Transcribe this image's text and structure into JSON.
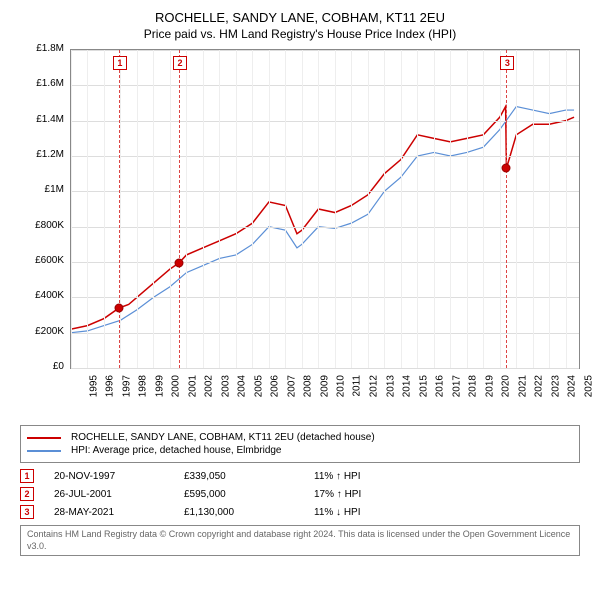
{
  "title": "ROCHELLE, SANDY LANE, COBHAM, KT11 2EU",
  "subtitle": "Price paid vs. HM Land Registry's House Price Index (HPI)",
  "chart": {
    "type": "line",
    "background_color": "#ffffff",
    "grid_color": "#dddddd",
    "grid_color_minor": "#eeeeee",
    "border_color": "#888888",
    "x_min": 1995,
    "x_max": 2025.8,
    "y_min": 0,
    "y_max": 1800000,
    "y_ticks": [
      {
        "v": 0,
        "label": "£0"
      },
      {
        "v": 200000,
        "label": "£200K"
      },
      {
        "v": 400000,
        "label": "£400K"
      },
      {
        "v": 600000,
        "label": "£600K"
      },
      {
        "v": 800000,
        "label": "£800K"
      },
      {
        "v": 1000000,
        "label": "£1M"
      },
      {
        "v": 1200000,
        "label": "£1.2M"
      },
      {
        "v": 1400000,
        "label": "£1.4M"
      },
      {
        "v": 1600000,
        "label": "£1.6M"
      },
      {
        "v": 1800000,
        "label": "£1.8M"
      }
    ],
    "x_ticks": [
      1995,
      1996,
      1997,
      1998,
      1999,
      2000,
      2001,
      2002,
      2003,
      2004,
      2005,
      2006,
      2007,
      2008,
      2009,
      2010,
      2011,
      2012,
      2013,
      2014,
      2015,
      2016,
      2017,
      2018,
      2019,
      2020,
      2021,
      2022,
      2023,
      2024,
      2025
    ],
    "series": [
      {
        "name": "rochelle",
        "label": "ROCHELLE, SANDY LANE, COBHAM, KT11 2EU (detached house)",
        "color": "#cc0000",
        "line_width": 1.5,
        "data": [
          [
            1995,
            220000
          ],
          [
            1996,
            240000
          ],
          [
            1997,
            280000
          ],
          [
            1997.9,
            339050
          ],
          [
            1998.5,
            360000
          ],
          [
            1999,
            400000
          ],
          [
            2000,
            480000
          ],
          [
            2001,
            560000
          ],
          [
            2001.55,
            595000
          ],
          [
            2002,
            640000
          ],
          [
            2003,
            680000
          ],
          [
            2004,
            720000
          ],
          [
            2005,
            760000
          ],
          [
            2006,
            820000
          ],
          [
            2007,
            940000
          ],
          [
            2008,
            920000
          ],
          [
            2008.7,
            760000
          ],
          [
            2009,
            780000
          ],
          [
            2010,
            900000
          ],
          [
            2011,
            880000
          ],
          [
            2012,
            920000
          ],
          [
            2013,
            980000
          ],
          [
            2014,
            1100000
          ],
          [
            2015,
            1180000
          ],
          [
            2016,
            1320000
          ],
          [
            2017,
            1300000
          ],
          [
            2018,
            1280000
          ],
          [
            2019,
            1300000
          ],
          [
            2020,
            1320000
          ],
          [
            2021,
            1420000
          ],
          [
            2021.35,
            1480000
          ],
          [
            2021.4,
            1130000
          ],
          [
            2022,
            1320000
          ],
          [
            2023,
            1380000
          ],
          [
            2024,
            1380000
          ],
          [
            2025,
            1400000
          ],
          [
            2025.5,
            1420000
          ]
        ]
      },
      {
        "name": "hpi",
        "label": "HPI: Average price, detached house, Elmbridge",
        "color": "#5b8fd6",
        "line_width": 1.2,
        "data": [
          [
            1995,
            200000
          ],
          [
            1996,
            210000
          ],
          [
            1997,
            240000
          ],
          [
            1998,
            270000
          ],
          [
            1999,
            330000
          ],
          [
            2000,
            400000
          ],
          [
            2001,
            460000
          ],
          [
            2002,
            540000
          ],
          [
            2003,
            580000
          ],
          [
            2004,
            620000
          ],
          [
            2005,
            640000
          ],
          [
            2006,
            700000
          ],
          [
            2007,
            800000
          ],
          [
            2008,
            780000
          ],
          [
            2008.7,
            680000
          ],
          [
            2009,
            700000
          ],
          [
            2010,
            800000
          ],
          [
            2011,
            790000
          ],
          [
            2012,
            820000
          ],
          [
            2013,
            870000
          ],
          [
            2014,
            1000000
          ],
          [
            2015,
            1080000
          ],
          [
            2016,
            1200000
          ],
          [
            2017,
            1220000
          ],
          [
            2018,
            1200000
          ],
          [
            2019,
            1220000
          ],
          [
            2020,
            1250000
          ],
          [
            2021,
            1350000
          ],
          [
            2022,
            1480000
          ],
          [
            2023,
            1460000
          ],
          [
            2024,
            1440000
          ],
          [
            2025,
            1460000
          ],
          [
            2025.5,
            1460000
          ]
        ]
      }
    ],
    "markers": [
      {
        "n": "1",
        "x": 1997.9,
        "y": 339050
      },
      {
        "n": "2",
        "x": 2001.55,
        "y": 595000
      },
      {
        "n": "3",
        "x": 2021.4,
        "y": 1130000
      }
    ],
    "marker_line_color": "#d44",
    "marker_box_border": "#cc0000",
    "marker_box_text": "#cc0000",
    "point_dot_fill": "#cc0000",
    "point_dot_border": "#990000"
  },
  "legend": {
    "items": [
      {
        "color": "#cc0000",
        "label": "ROCHELLE, SANDY LANE, COBHAM, KT11 2EU (detached house)"
      },
      {
        "color": "#5b8fd6",
        "label": "HPI: Average price, detached house, Elmbridge"
      }
    ]
  },
  "events": [
    {
      "n": "1",
      "date": "20-NOV-1997",
      "price": "£339,050",
      "delta": "11% ↑ HPI"
    },
    {
      "n": "2",
      "date": "26-JUL-2001",
      "price": "£595,000",
      "delta": "17% ↑ HPI"
    },
    {
      "n": "3",
      "date": "28-MAY-2021",
      "price": "£1,130,000",
      "delta": "11% ↓ HPI"
    }
  ],
  "footer": "Contains HM Land Registry data © Crown copyright and database right 2024. This data is licensed under the Open Government Licence v3.0."
}
